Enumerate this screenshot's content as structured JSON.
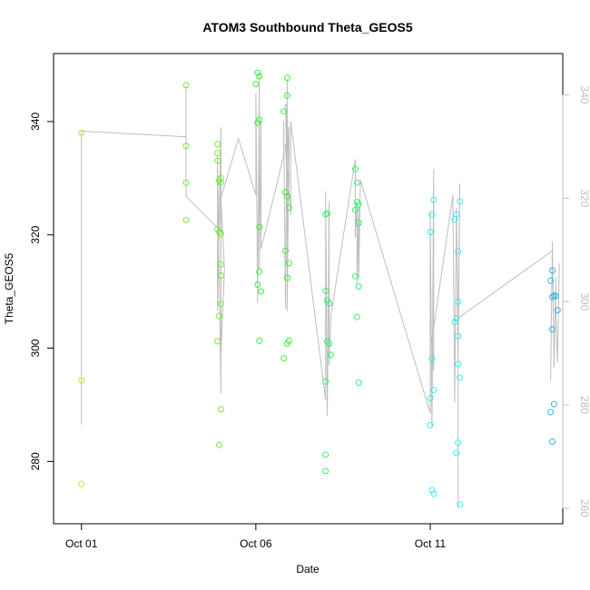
{
  "chart_data": {
    "type": "scatter",
    "title": "ATOM3 Southbound Theta_GEOS5",
    "xlabel": "Date",
    "ylabel": "Theta_GEOS5",
    "x_ticks": [
      {
        "label": "Oct 01",
        "day": 1
      },
      {
        "label": "Oct 06",
        "day": 6
      },
      {
        "label": "Oct 11",
        "day": 11
      }
    ],
    "xlim": [
      0.2,
      14.8
    ],
    "ylim_left": [
      269,
      352
    ],
    "y_ticks_left": [
      280,
      300,
      320,
      340
    ],
    "ylim_right": [
      257,
      348
    ],
    "y_ticks_right": [
      260,
      280,
      300,
      320,
      340
    ],
    "colors": {
      "axis": "#000000",
      "right_axis": "#bdbdbd",
      "line": "#bebebe"
    },
    "series": [
      {
        "color": "#aeee3c",
        "points": [
          [
            1.0,
            338
          ],
          [
            1.0,
            294.3
          ],
          [
            1.0,
            276
          ]
        ]
      },
      {
        "color": "#73ee3c",
        "points": [
          [
            4.0,
            346.4
          ],
          [
            4.0,
            335.7
          ],
          [
            4.0,
            329.2
          ],
          [
            4.0,
            322.6
          ],
          [
            4.9,
            336
          ],
          [
            4.9,
            334.4
          ],
          [
            4.9,
            333.1
          ],
          [
            4.95,
            329.6
          ],
          [
            5.0,
            329.2
          ],
          [
            5.0,
            330
          ],
          [
            4.9,
            321
          ],
          [
            4.95,
            320.5
          ],
          [
            5.0,
            320.2
          ],
          [
            5.0,
            314.8
          ],
          [
            5.0,
            312.8
          ],
          [
            5.0,
            307.8
          ],
          [
            4.95,
            305.7
          ],
          [
            4.9,
            301.2
          ],
          [
            5.0,
            289.2
          ],
          [
            4.95,
            282.9
          ]
        ]
      },
      {
        "color": "#3cee3c",
        "points": [
          [
            6.05,
            348.6
          ],
          [
            6.1,
            348
          ],
          [
            6.0,
            346.6
          ],
          [
            6.1,
            340.3
          ],
          [
            6.05,
            339.8
          ],
          [
            6.1,
            321.4
          ],
          [
            6.1,
            313.5
          ],
          [
            6.05,
            311.2
          ],
          [
            6.15,
            310
          ],
          [
            6.1,
            301.3
          ],
          [
            6.8,
            341.8
          ],
          [
            6.9,
            347.7
          ],
          [
            6.9,
            344.6
          ],
          [
            6.85,
            327.5
          ],
          [
            6.9,
            326.8
          ],
          [
            6.95,
            324.8
          ],
          [
            6.85,
            317.2
          ],
          [
            6.95,
            315
          ],
          [
            6.9,
            312.4
          ],
          [
            6.95,
            301.3
          ],
          [
            6.9,
            300.8
          ],
          [
            6.8,
            298.2
          ]
        ]
      },
      {
        "color": "#3cee73",
        "points": [
          [
            8.0,
            323.6
          ],
          [
            8.05,
            323.8
          ],
          [
            8.0,
            310.1
          ],
          [
            8.05,
            308.4
          ],
          [
            8.1,
            307.9
          ],
          [
            8.05,
            301.2
          ],
          [
            8.1,
            300.8
          ],
          [
            8.15,
            298.8
          ],
          [
            8.0,
            294.1
          ],
          [
            8.0,
            281.2
          ],
          [
            8.0,
            278.3
          ],
          [
            8.85,
            331.6
          ],
          [
            8.9,
            329.2
          ],
          [
            8.9,
            325.8
          ],
          [
            8.95,
            325.4
          ],
          [
            8.85,
            324.4
          ],
          [
            8.95,
            322.1
          ],
          [
            8.85,
            312.7
          ],
          [
            8.95,
            310.9
          ],
          [
            8.9,
            305.5
          ],
          [
            8.95,
            293.9
          ]
        ]
      },
      {
        "color": "#3ceeee",
        "points": [
          [
            11.1,
            326.2
          ],
          [
            11.05,
            323.6
          ],
          [
            11.0,
            320.5
          ],
          [
            11.05,
            298.1
          ],
          [
            11.1,
            292.6
          ],
          [
            11.0,
            291.2
          ],
          [
            11.0,
            286.4
          ],
          [
            11.05,
            274.9
          ],
          [
            11.1,
            274.3
          ],
          [
            11.75,
            323.6
          ],
          [
            11.7,
            322.7
          ],
          [
            11.85,
            325.9
          ],
          [
            11.8,
            317.1
          ],
          [
            11.8,
            308.2
          ],
          [
            11.75,
            305.3
          ],
          [
            11.7,
            304.6
          ],
          [
            11.8,
            302.1
          ],
          [
            11.8,
            297.2
          ],
          [
            11.85,
            294.8
          ],
          [
            11.8,
            283.3
          ],
          [
            11.75,
            281.5
          ],
          [
            11.85,
            272.4
          ]
        ]
      },
      {
        "color": "#3cb0ee",
        "points": [
          [
            14.5,
            313.7
          ],
          [
            14.45,
            311.9
          ],
          [
            14.55,
            309.3
          ],
          [
            14.6,
            309.2
          ],
          [
            14.5,
            309
          ],
          [
            14.65,
            306.7
          ],
          [
            14.5,
            303.3
          ],
          [
            14.55,
            290.1
          ],
          [
            14.45,
            288.7
          ],
          [
            14.5,
            283.5
          ]
        ]
      }
    ],
    "line_path": [
      [
        1.0,
        338.3
      ],
      [
        1.0,
        286.5
      ],
      [
        1.0,
        338.3
      ],
      [
        4.0,
        337.3
      ],
      [
        4.0,
        346.2
      ],
      [
        4.0,
        332.5
      ],
      [
        4.0,
        326.8
      ],
      [
        4.9,
        321.2
      ],
      [
        4.9,
        306.7
      ],
      [
        5.0,
        339
      ],
      [
        5.0,
        292
      ],
      [
        4.9,
        334
      ],
      [
        4.9,
        308
      ],
      [
        5.0,
        332
      ],
      [
        5.0,
        299
      ],
      [
        5.1,
        314
      ],
      [
        5.0,
        326.5
      ],
      [
        5.5,
        337.0
      ],
      [
        6.0,
        327.0
      ],
      [
        6.0,
        345
      ],
      [
        6.05,
        308
      ],
      [
        6.1,
        348.5
      ],
      [
        6.1,
        314
      ],
      [
        6.15,
        340
      ],
      [
        6.15,
        317.5
      ],
      [
        6.8,
        334
      ],
      [
        6.8,
        340
      ],
      [
        6.85,
        307
      ],
      [
        6.9,
        347.5
      ],
      [
        6.9,
        306.5
      ],
      [
        6.95,
        339
      ],
      [
        6.95,
        328
      ],
      [
        6.9,
        342.8
      ],
      [
        6.85,
        343
      ],
      [
        6.9,
        329.5
      ],
      [
        6.85,
        336
      ],
      [
        7.0,
        323.5
      ],
      [
        7.0,
        340
      ],
      [
        8.0,
        290.8
      ],
      [
        8.0,
        327.7
      ],
      [
        8.05,
        288
      ],
      [
        8.1,
        326
      ],
      [
        8.1,
        297
      ],
      [
        8.15,
        305.7
      ],
      [
        8.85,
        333.3
      ],
      [
        8.85,
        319.5
      ],
      [
        8.9,
        325.8
      ],
      [
        8.9,
        311.5
      ],
      [
        8.95,
        325
      ],
      [
        8.95,
        312
      ],
      [
        9.0,
        329.7
      ],
      [
        11.0,
        288.5
      ],
      [
        11.0,
        324
      ],
      [
        11.05,
        286
      ],
      [
        11.1,
        331.5
      ],
      [
        11.1,
        296
      ],
      [
        11.05,
        301.5
      ],
      [
        11.65,
        327
      ],
      [
        11.7,
        290.5
      ],
      [
        11.75,
        324.8
      ],
      [
        11.8,
        298
      ],
      [
        11.85,
        329
      ],
      [
        11.8,
        306.5
      ],
      [
        11.8,
        271.8
      ],
      [
        11.8,
        305.3
      ],
      [
        14.5,
        317.2
      ],
      [
        14.45,
        294.3
      ],
      [
        14.5,
        318.8
      ],
      [
        14.55,
        296.5
      ],
      [
        14.6,
        312.5
      ],
      [
        14.6,
        307
      ],
      [
        14.65,
        297.5
      ],
      [
        14.7,
        315
      ]
    ]
  }
}
